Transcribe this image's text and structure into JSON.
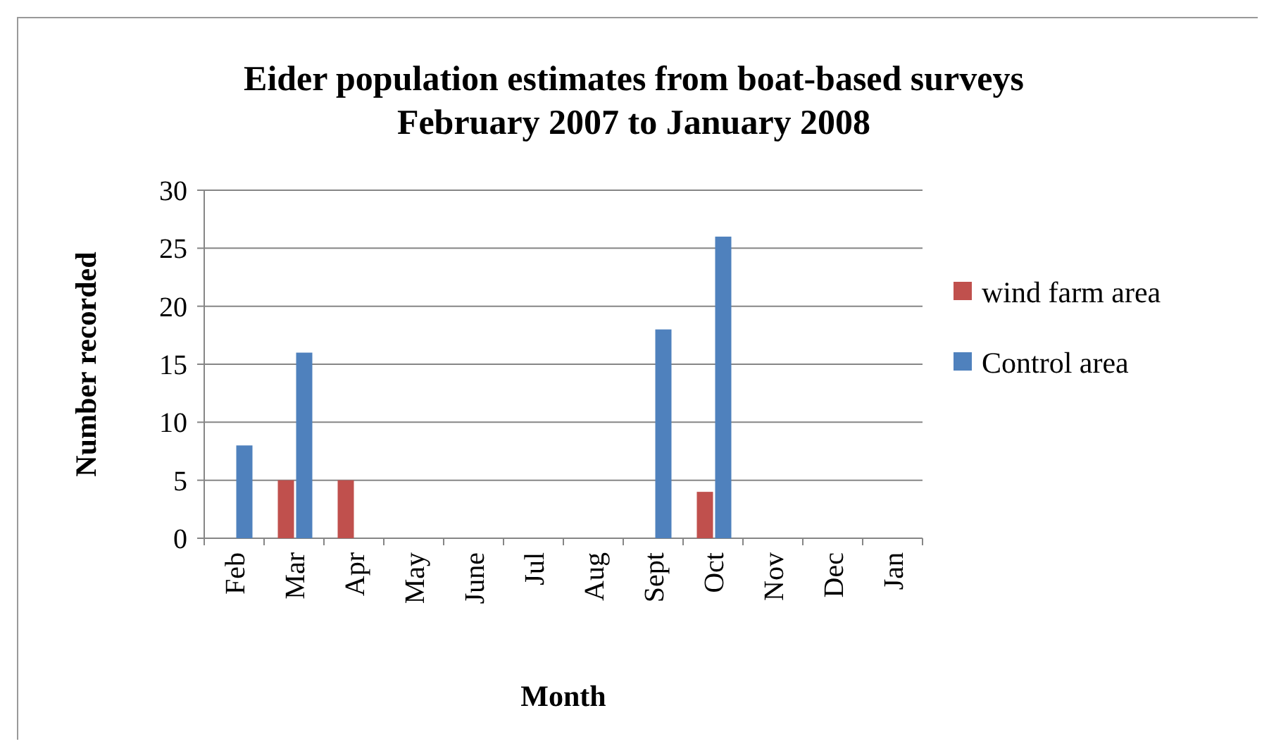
{
  "chart_data": {
    "type": "bar",
    "title": "Eider population estimates from boat-based surveys\nFebruary 2007 to January 2008",
    "xlabel": "Month",
    "ylabel": "Number recorded",
    "categories": [
      "Feb",
      "Mar",
      "Apr",
      "May",
      "June",
      "Jul",
      "Aug",
      "Sept",
      "Oct",
      "Nov",
      "Dec",
      "Jan"
    ],
    "series": [
      {
        "name": "wind farm area",
        "color": "#c0504d",
        "values": [
          0,
          5,
          5,
          0,
          0,
          0,
          0,
          0,
          4,
          0,
          0,
          0
        ]
      },
      {
        "name": "Control area",
        "color": "#4f81bd",
        "values": [
          8,
          16,
          0,
          0,
          0,
          0,
          0,
          18,
          26,
          0,
          0,
          0
        ]
      }
    ],
    "ylim": [
      0,
      30
    ],
    "yticks": [
      0,
      5,
      10,
      15,
      20,
      25,
      30
    ],
    "grid": "y",
    "legend": "right"
  }
}
